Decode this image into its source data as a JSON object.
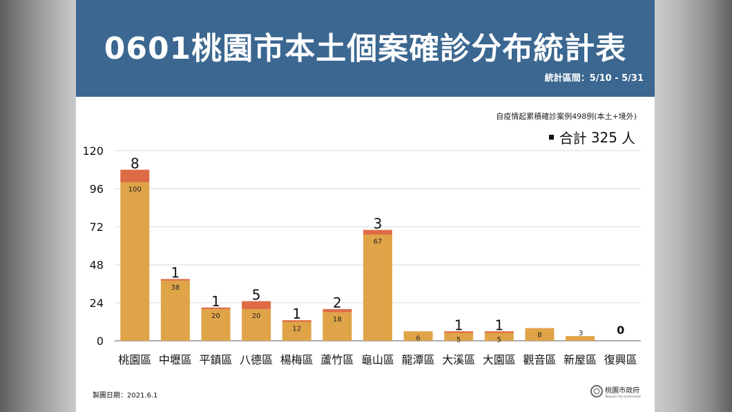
{
  "title": "0601桃園市本土個案確診分布統計表",
  "period": "統計區間：5/10 - 5/31",
  "cumulative_note": "自疫情起累積確診案例498例(本土+境外)",
  "total_legend": {
    "label": "合計",
    "value": "325",
    "unit": "人"
  },
  "date_label": "製圖日期：2021.6.1",
  "logo": {
    "name": "桃園市政府",
    "en": "Taoyuan City Government"
  },
  "colors": {
    "header": "#3b6790",
    "base": "#e0a448",
    "top": "#de6b45",
    "grid": "#d9d9d9",
    "axis": "#595959"
  },
  "chart_data": {
    "type": "bar",
    "stacked": true,
    "categories": [
      "桃園區",
      "中壢區",
      "平鎮區",
      "八德區",
      "楊梅區",
      "蘆竹區",
      "龜山區",
      "龍潭區",
      "大溪區",
      "大園區",
      "觀音區",
      "新屋區",
      "復興區"
    ],
    "series": [
      {
        "values": [
          100,
          38,
          20,
          20,
          12,
          18,
          67,
          6,
          5,
          5,
          8,
          3,
          0
        ]
      },
      {
        "values": [
          8,
          1,
          1,
          5,
          1,
          2,
          3,
          0,
          1,
          1,
          0,
          0,
          0
        ]
      }
    ],
    "top_labels": [
      "8",
      "1",
      "1",
      "5",
      "1",
      "2",
      "3",
      "",
      "1",
      "1",
      "",
      "",
      "0"
    ],
    "y_ticks": [
      0,
      24,
      48,
      72,
      96,
      120
    ],
    "ylim": [
      0,
      120
    ],
    "grid": true
  }
}
